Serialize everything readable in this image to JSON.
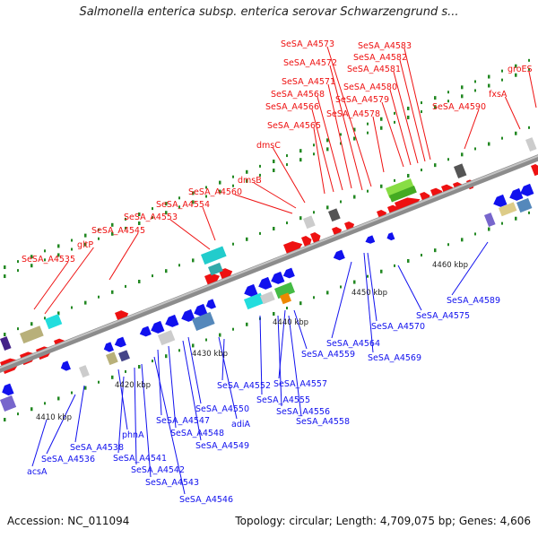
{
  "title": "Salmonella enterica subsp. enterica serovar Schwarzengrund s...",
  "footer": {
    "accession": "Accession: NC_011094",
    "summary": "Topology: circular; Length: 4,709,075 bp; Genes: 4,606"
  },
  "colors": {
    "forward": "#ee1111",
    "reverse": "#1111ee",
    "backbone": "#9a9a9a",
    "tick": "#228822"
  },
  "scale_labels": [
    "4410 kbp",
    "4420 kbp",
    "4430 kbp",
    "4440 kbp",
    "4450 kbp",
    "4460 kbp"
  ],
  "forward_genes": [
    "SeSA_A4535",
    "gltP",
    "SeSA_A4545",
    "SeSA_A4553",
    "SeSA_A4554",
    "SeSA_A4560",
    "dmsB",
    "dmsC",
    "SeSA_A4565",
    "SeSA_A4566",
    "SeSA_A4568",
    "SeSA_A4571",
    "SeSA_A4572",
    "SeSA_A4573",
    "SeSA_A4578",
    "SeSA_A4579",
    "SeSA_A4580",
    "SeSA_A4581",
    "SeSA_A4582",
    "SeSA_A4583",
    "SeSA_A4590",
    "fxsA",
    "groES"
  ],
  "reverse_genes": [
    "acsA",
    "SeSA_A4536",
    "SeSA_A4538",
    "phnA",
    "SeSA_A4541",
    "SeSA_A4542",
    "SeSA_A4543",
    "SeSA_A4546",
    "SeSA_A4547",
    "SeSA_A4548",
    "SeSA_A4549",
    "SeSA_A4550",
    "adiA",
    "SeSA_A4552",
    "SeSA_A4555",
    "SeSA_A4556",
    "SeSA_A4557",
    "SeSA_A4558",
    "SeSA_A4559",
    "SeSA_A4564",
    "SeSA_A4569",
    "SeSA_A4570",
    "SeSA_A4575",
    "SeSA_A4589"
  ]
}
